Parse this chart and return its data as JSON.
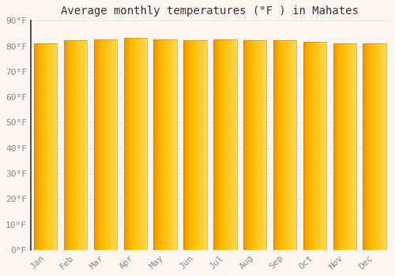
{
  "title": "Average monthly temperatures (°F ) in Mahates",
  "months": [
    "Jan",
    "Feb",
    "Mar",
    "Apr",
    "May",
    "Jun",
    "Jul",
    "Aug",
    "Sep",
    "Oct",
    "Nov",
    "Dec"
  ],
  "values": [
    81.1,
    82.2,
    82.6,
    83.3,
    82.8,
    82.4,
    82.6,
    82.4,
    82.2,
    81.7,
    81.1,
    81.1
  ],
  "ylim": [
    0,
    90
  ],
  "yticks": [
    0,
    10,
    20,
    30,
    40,
    50,
    60,
    70,
    80,
    90
  ],
  "ytick_labels": [
    "0°F",
    "10°F",
    "20°F",
    "30°F",
    "40°F",
    "50°F",
    "60°F",
    "70°F",
    "80°F",
    "90°F"
  ],
  "bar_color_center": "#FFBA00",
  "bar_color_left": "#E89500",
  "bar_color_right": "#FFD84D",
  "background_color": "#fdf6f0",
  "grid_color": "#e8e8e8",
  "title_fontsize": 10,
  "tick_fontsize": 8,
  "tick_color": "#888888",
  "spine_color": "#333333",
  "font_family": "monospace"
}
